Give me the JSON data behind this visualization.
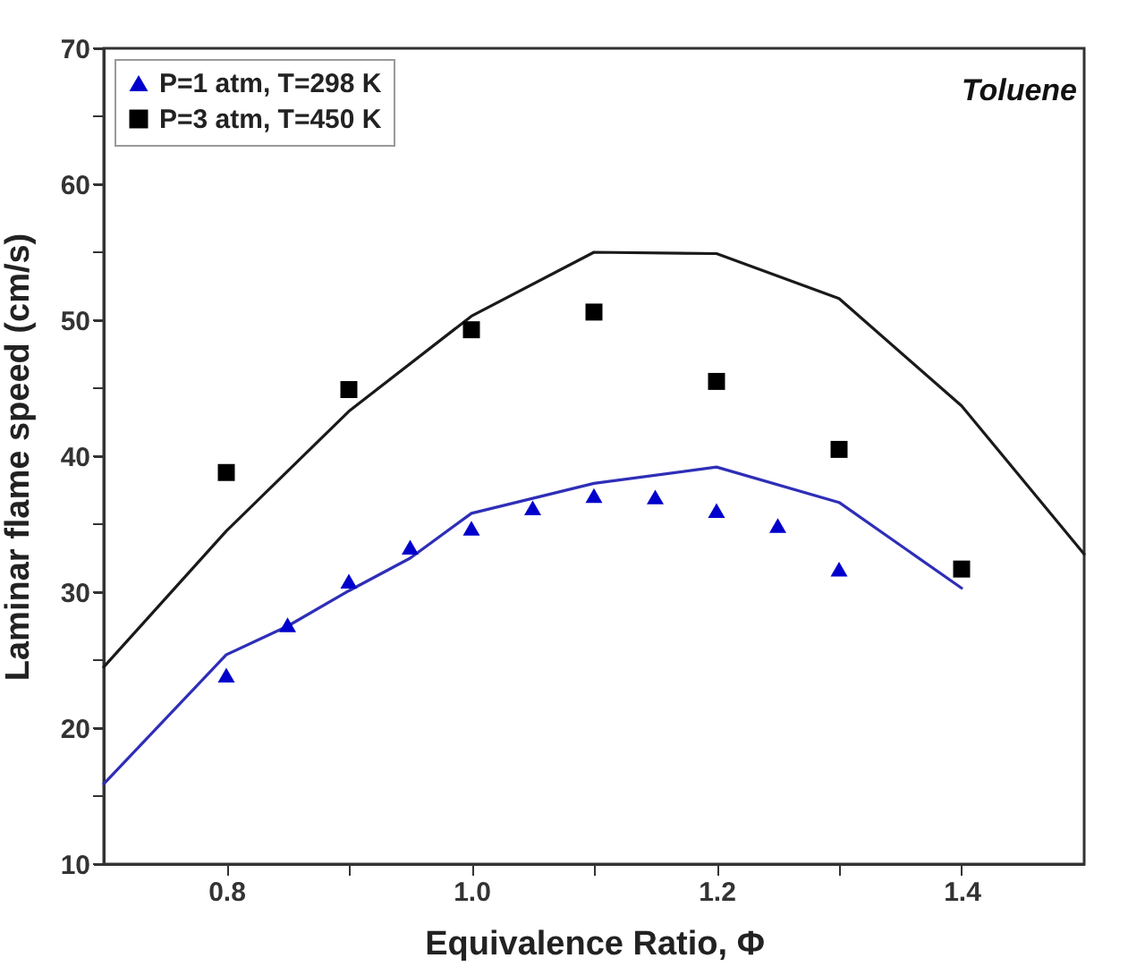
{
  "chart_data": {
    "type": "scatter",
    "xlabel": "Equivalence Ratio, Φ",
    "ylabel": "Laminar flame speed (cm/s)",
    "annotations": [
      "Toluene"
    ],
    "xlim": [
      0.7,
      1.5
    ],
    "xticks": [
      0.8,
      {
        "value": 0.9,
        "label": null
      },
      {
        "value": 1.0,
        "label": "1.0"
      },
      {
        "value": 1.1,
        "label": null
      },
      1.2,
      {
        "value": 1.3,
        "label": null
      },
      1.4
    ],
    "ylim": [
      10,
      70
    ],
    "yticks": [
      10,
      {
        "value": 15,
        "label": null
      },
      20,
      {
        "value": 25,
        "label": null
      },
      30,
      {
        "value": 35,
        "label": null
      },
      40,
      {
        "value": 45,
        "label": null
      },
      50,
      {
        "value": 55,
        "label": null
      },
      60,
      {
        "value": 65,
        "label": null
      },
      70
    ],
    "grid": false,
    "legend": "top left",
    "series": [
      {
        "type": "line",
        "color": "#2e2eb8",
        "marker": "none",
        "x": [
          0.7,
          0.8,
          0.85,
          0.9,
          0.95,
          1.0,
          1.1,
          1.2,
          1.3,
          1.4
        ],
        "values": [
          15.9,
          25.4,
          27.5,
          30.1,
          32.5,
          35.8,
          38.0,
          39.2,
          36.6,
          30.3
        ]
      },
      {
        "type": "line",
        "color": "#1a1a1a",
        "marker": "none",
        "x": [
          0.7,
          0.8,
          0.9,
          1.0,
          1.1,
          1.2,
          1.3,
          1.4,
          1.5
        ],
        "values": [
          24.5,
          34.5,
          43.3,
          50.3,
          55.0,
          54.9,
          51.6,
          43.7,
          32.8
        ]
      },
      {
        "type": "scatter",
        "name": "P=1 atm, T=298 K",
        "color": "#0000cc",
        "marker": "triangle",
        "x": [
          0.8,
          0.85,
          0.9,
          0.95,
          1.0,
          1.05,
          1.1,
          1.15,
          1.2,
          1.25,
          1.3
        ],
        "values": [
          23.9,
          27.6,
          30.8,
          33.3,
          34.7,
          36.2,
          37.1,
          37.0,
          36.0,
          34.9,
          31.7
        ]
      },
      {
        "type": "scatter",
        "name": "P=3 atm, T=450 K",
        "color": "#000000",
        "marker": "square",
        "x": [
          0.8,
          0.9,
          1.0,
          1.1,
          1.2,
          1.3,
          1.4
        ],
        "values": [
          38.8,
          44.9,
          49.3,
          50.6,
          45.5,
          40.5,
          31.7
        ]
      }
    ]
  }
}
